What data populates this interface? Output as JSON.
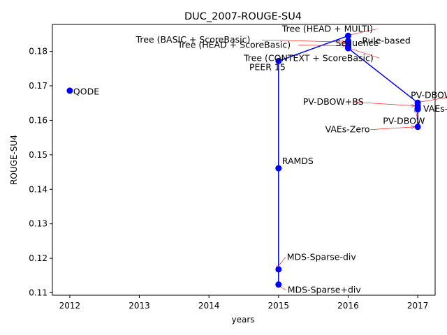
{
  "chart_data": {
    "type": "scatter",
    "title": "DUC_2007-ROUGE-SU4",
    "xlabel": "years",
    "ylabel": "ROUGE-SU4",
    "xlim": [
      2011.75,
      2017.25
    ],
    "ylim": [
      0.1093,
      0.1878
    ],
    "xticks": [
      2012,
      2013,
      2014,
      2015,
      2016,
      2017
    ],
    "yticks": [
      0.11,
      0.12,
      0.13,
      0.14,
      0.15,
      0.16,
      0.17,
      0.18
    ],
    "grid": false,
    "colors": {
      "points": "#0000ff",
      "line": "#0000ff",
      "arrow": "#ff0000"
    },
    "points": [
      {
        "label": "QODE",
        "x": 2012,
        "y": 0.1686,
        "label_x": 2012.05,
        "label_y": 0.1675,
        "arrow": false
      },
      {
        "label": "PEER 15",
        "x": 2015,
        "y": 0.1772,
        "label_x": 2014.58,
        "label_y": 0.1745,
        "arrow": false
      },
      {
        "label": "RAMDS",
        "x": 2015,
        "y": 0.1461,
        "label_x": 2015.05,
        "label_y": 0.1473,
        "arrow": false
      },
      {
        "label": "MDS-Sparse-div",
        "x": 2015,
        "y": 0.1168,
        "label_x": 2015.12,
        "label_y": 0.1195,
        "arrow": true
      },
      {
        "label": "MDS-Sparse+div",
        "x": 2015,
        "y": 0.1124,
        "label_x": 2015.13,
        "label_y": 0.11,
        "arrow": true
      },
      {
        "label": "Tree (HEAD + MULTI)",
        "x": 2016,
        "y": 0.1845,
        "label_x": 2015.05,
        "label_y": 0.1857,
        "arrow": true
      },
      {
        "label": "Rule-based",
        "x": 2016,
        "y": 0.183,
        "label_x": 2016.2,
        "label_y": 0.1822,
        "arrow": false
      },
      {
        "label": "Tree (BASIC + ScoreBasic)",
        "x": 2016,
        "y": 0.1827,
        "label_x": 2012.95,
        "label_y": 0.1825,
        "arrow": true
      },
      {
        "label": "Tree (HEAD + ScoreBasic)",
        "x": 2016,
        "y": 0.1816,
        "label_x": 2013.55,
        "label_y": 0.181,
        "arrow": true
      },
      {
        "label": "Sequence",
        "x": 2016,
        "y": 0.1809,
        "label_x": 2015.82,
        "label_y": 0.1815,
        "arrow": false
      },
      {
        "label": "Tree (CONTEXT + ScoreBasic)",
        "x": 2016,
        "y": 0.1813,
        "label_x": 2014.5,
        "label_y": 0.1772,
        "arrow": true
      },
      {
        "label": "PV-DBOW+SS",
        "x": 2017,
        "y": 0.1651,
        "label_x": 2016.9,
        "label_y": 0.1665,
        "arrow": true
      },
      {
        "label": "PV-DBOW+BS",
        "x": 2017,
        "y": 0.1642,
        "label_x": 2015.35,
        "label_y": 0.1645,
        "arrow": true
      },
      {
        "label": "VAEs-A",
        "x": 2017,
        "y": 0.1632,
        "label_x": 2017.08,
        "label_y": 0.1625,
        "arrow": false
      },
      {
        "label": "PV-DBOW",
        "x": 2017,
        "y": 0.1635,
        "label_x": 2016.5,
        "label_y": 0.159,
        "arrow": true
      },
      {
        "label": "VAEs-Zero",
        "x": 2017,
        "y": 0.1581,
        "label_x": 2015.67,
        "label_y": 0.1565,
        "arrow": true
      }
    ],
    "connector_path": [
      {
        "x": 2015,
        "y": 0.1124
      },
      {
        "x": 2015,
        "y": 0.1772
      },
      {
        "x": 2016,
        "y": 0.1845
      },
      {
        "x": 2016,
        "y": 0.1809
      },
      {
        "x": 2017,
        "y": 0.1651
      },
      {
        "x": 2017,
        "y": 0.1581
      }
    ]
  }
}
